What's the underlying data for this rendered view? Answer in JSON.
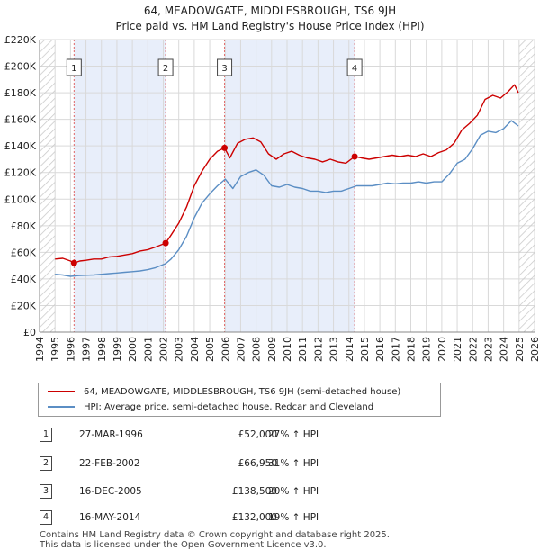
{
  "header": {
    "title": "64, MEADOWGATE, MIDDLESBROUGH, TS6 9JH",
    "subtitle": "Price paid vs. HM Land Registry's House Price Index (HPI)"
  },
  "chart_data": {
    "type": "line",
    "title": "64, MEADOWGATE, MIDDLESBROUGH, TS6 9JH",
    "subtitle": "Price paid vs. HM Land Registry's House Price Index (HPI)",
    "xlim": [
      1994,
      2026
    ],
    "ylim": [
      0,
      220000
    ],
    "x_ticks": [
      1994,
      1995,
      1996,
      1997,
      1998,
      1999,
      2000,
      2001,
      2002,
      2003,
      2004,
      2005,
      2006,
      2007,
      2008,
      2009,
      2010,
      2011,
      2012,
      2013,
      2014,
      2015,
      2016,
      2017,
      2018,
      2019,
      2020,
      2021,
      2022,
      2023,
      2024,
      2025,
      2026
    ],
    "y_ticks": [
      0,
      20000,
      40000,
      60000,
      80000,
      100000,
      120000,
      140000,
      160000,
      180000,
      200000,
      220000
    ],
    "y_tick_labels": [
      "£0",
      "£20K",
      "£40K",
      "£60K",
      "£80K",
      "£100K",
      "£120K",
      "£140K",
      "£160K",
      "£180K",
      "£200K",
      "£220K"
    ],
    "grid": true,
    "colors": {
      "property": "#cc0000",
      "hpi": "#5b8ec4",
      "shade": "#e8eefa",
      "event_line": "#e06666",
      "hatch": "#c0c0c0"
    },
    "series": [
      {
        "name": "64, MEADOWGATE, MIDDLESBROUGH, TS6 9JH (semi-detached house)",
        "color": "#cc0000",
        "points": [
          [
            1995.0,
            55000
          ],
          [
            1995.5,
            55500
          ],
          [
            1996.0,
            53500
          ],
          [
            1996.23,
            52000
          ],
          [
            1996.6,
            53500
          ],
          [
            1997.0,
            54000
          ],
          [
            1997.5,
            55000
          ],
          [
            1998.0,
            55000
          ],
          [
            1998.5,
            56500
          ],
          [
            1999.0,
            57000
          ],
          [
            1999.5,
            58000
          ],
          [
            2000.0,
            59000
          ],
          [
            2000.5,
            61000
          ],
          [
            2001.0,
            62000
          ],
          [
            2001.5,
            64000
          ],
          [
            2002.15,
            66950
          ],
          [
            2002.5,
            73000
          ],
          [
            2003.0,
            82000
          ],
          [
            2003.5,
            94000
          ],
          [
            2004.0,
            110000
          ],
          [
            2004.5,
            121000
          ],
          [
            2005.0,
            130000
          ],
          [
            2005.5,
            136000
          ],
          [
            2005.96,
            138500
          ],
          [
            2006.3,
            131000
          ],
          [
            2006.8,
            142000
          ],
          [
            2007.3,
            145000
          ],
          [
            2007.8,
            146000
          ],
          [
            2008.3,
            143000
          ],
          [
            2008.8,
            134000
          ],
          [
            2009.3,
            130000
          ],
          [
            2009.8,
            134000
          ],
          [
            2010.3,
            136000
          ],
          [
            2010.8,
            133000
          ],
          [
            2011.3,
            131000
          ],
          [
            2011.8,
            130000
          ],
          [
            2012.3,
            128000
          ],
          [
            2012.8,
            130000
          ],
          [
            2013.3,
            128000
          ],
          [
            2013.8,
            127000
          ],
          [
            2014.37,
            132000
          ],
          [
            2014.8,
            131000
          ],
          [
            2015.3,
            130000
          ],
          [
            2015.8,
            131000
          ],
          [
            2016.3,
            132000
          ],
          [
            2016.8,
            133000
          ],
          [
            2017.3,
            132000
          ],
          [
            2017.8,
            133000
          ],
          [
            2018.3,
            132000
          ],
          [
            2018.8,
            134000
          ],
          [
            2019.3,
            132000
          ],
          [
            2019.8,
            135000
          ],
          [
            2020.3,
            137000
          ],
          [
            2020.8,
            142000
          ],
          [
            2021.3,
            152000
          ],
          [
            2021.8,
            157000
          ],
          [
            2022.3,
            163000
          ],
          [
            2022.8,
            175000
          ],
          [
            2023.3,
            178000
          ],
          [
            2023.8,
            176000
          ],
          [
            2024.3,
            181000
          ],
          [
            2024.7,
            186000
          ],
          [
            2024.95,
            180000
          ]
        ]
      },
      {
        "name": "HPI: Average price, semi-detached house, Redcar and Cleveland",
        "color": "#5b8ec4",
        "points": [
          [
            1995.0,
            43500
          ],
          [
            1995.5,
            43000
          ],
          [
            1996.0,
            42000
          ],
          [
            1996.5,
            42500
          ],
          [
            1997.0,
            42800
          ],
          [
            1997.5,
            43000
          ],
          [
            1998.0,
            43500
          ],
          [
            1998.5,
            44000
          ],
          [
            1999.0,
            44500
          ],
          [
            1999.5,
            45000
          ],
          [
            2000.0,
            45500
          ],
          [
            2000.5,
            46000
          ],
          [
            2001.0,
            47000
          ],
          [
            2001.5,
            48500
          ],
          [
            2002.15,
            51500
          ],
          [
            2002.5,
            55000
          ],
          [
            2003.0,
            62000
          ],
          [
            2003.5,
            72000
          ],
          [
            2004.0,
            86000
          ],
          [
            2004.5,
            97000
          ],
          [
            2005.0,
            104000
          ],
          [
            2005.5,
            110000
          ],
          [
            2006.0,
            115000
          ],
          [
            2006.5,
            108000
          ],
          [
            2007.0,
            117000
          ],
          [
            2007.5,
            120000
          ],
          [
            2008.0,
            122000
          ],
          [
            2008.5,
            118000
          ],
          [
            2009.0,
            110000
          ],
          [
            2009.5,
            109000
          ],
          [
            2010.0,
            111000
          ],
          [
            2010.5,
            109000
          ],
          [
            2011.0,
            108000
          ],
          [
            2011.5,
            106000
          ],
          [
            2012.0,
            106000
          ],
          [
            2012.5,
            105000
          ],
          [
            2013.0,
            106000
          ],
          [
            2013.5,
            106000
          ],
          [
            2014.0,
            108000
          ],
          [
            2014.5,
            110000
          ],
          [
            2015.0,
            110000
          ],
          [
            2015.5,
            110000
          ],
          [
            2016.0,
            111000
          ],
          [
            2016.5,
            112000
          ],
          [
            2017.0,
            111500
          ],
          [
            2017.5,
            112000
          ],
          [
            2018.0,
            112000
          ],
          [
            2018.5,
            113000
          ],
          [
            2019.0,
            112000
          ],
          [
            2019.5,
            113000
          ],
          [
            2020.0,
            113000
          ],
          [
            2020.5,
            119000
          ],
          [
            2021.0,
            127000
          ],
          [
            2021.5,
            130000
          ],
          [
            2022.0,
            138000
          ],
          [
            2022.5,
            148000
          ],
          [
            2023.0,
            151000
          ],
          [
            2023.5,
            150000
          ],
          [
            2024.0,
            153000
          ],
          [
            2024.5,
            159000
          ],
          [
            2024.95,
            155000
          ]
        ]
      }
    ],
    "events": [
      {
        "label": "1",
        "x": 1996.23,
        "value": 52000
      },
      {
        "label": "2",
        "x": 2002.15,
        "value": 66950
      },
      {
        "label": "3",
        "x": 2005.96,
        "value": 138500
      },
      {
        "label": "4",
        "x": 2014.37,
        "value": 132000
      }
    ],
    "shaded_ranges": [
      [
        1996.23,
        2002.15
      ],
      [
        2005.96,
        2014.37
      ]
    ],
    "hatched_ranges": [
      [
        1994,
        1995
      ],
      [
        2025,
        2026
      ]
    ]
  },
  "legend": {
    "property_label": "64, MEADOWGATE, MIDDLESBROUGH, TS6 9JH (semi-detached house)",
    "hpi_label": "HPI: Average price, semi-detached house, Redcar and Cleveland"
  },
  "transactions": [
    {
      "num": "1",
      "date": "27-MAR-1996",
      "price": "£52,000",
      "hpi": "27% ↑ HPI"
    },
    {
      "num": "2",
      "date": "22-FEB-2002",
      "price": "£66,950",
      "hpi": "31% ↑ HPI"
    },
    {
      "num": "3",
      "date": "16-DEC-2005",
      "price": "£138,500",
      "hpi": "20% ↑ HPI"
    },
    {
      "num": "4",
      "date": "16-MAY-2014",
      "price": "£132,000",
      "hpi": "19% ↑ HPI"
    }
  ],
  "footer": {
    "line1": "Contains HM Land Registry data © Crown copyright and database right 2025.",
    "line2": "This data is licensed under the Open Government Licence v3.0."
  }
}
